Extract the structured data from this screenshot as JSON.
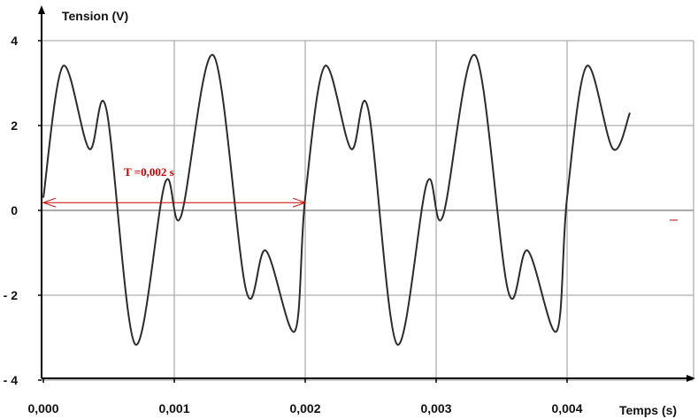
{
  "chart_data": {
    "type": "line",
    "ylabel": "Tension (V)",
    "xlabel": "Temps (s)",
    "xlim": [
      0,
      0.0045
    ],
    "ylim": [
      -4,
      4
    ],
    "x_ticks": [
      {
        "value": 0,
        "label": "0,000"
      },
      {
        "value": 0.001,
        "label": "0,001"
      },
      {
        "value": 0.002,
        "label": "0,002"
      },
      {
        "value": 0.003,
        "label": "0,003"
      },
      {
        "value": 0.004,
        "label": "0,004"
      }
    ],
    "y_ticks": [
      {
        "value": 4,
        "label": "4"
      },
      {
        "value": 2,
        "label": "2"
      },
      {
        "value": 0,
        "label": "0"
      },
      {
        "value": -2,
        "label": "- 2"
      },
      {
        "value": -4,
        "label": "- 4"
      }
    ],
    "grid": true,
    "series": [
      {
        "color": "#2b2b2b",
        "x": [
          0,
          0.00015,
          0.00035,
          0.00048,
          0.0007,
          0.00093,
          0.00105,
          0.0013,
          0.00155,
          0.0017,
          0.00192,
          0.002,
          0.00215,
          0.00235,
          0.00248,
          0.0027,
          0.00293,
          0.00305,
          0.0033,
          0.00355,
          0.0037,
          0.00392,
          0.004,
          0.00415,
          0.00435,
          0.00448
        ],
        "y": [
          0.3,
          3.4,
          1.45,
          2.4,
          -3.15,
          0.65,
          -0.15,
          3.65,
          -1.9,
          -0.95,
          -2.85,
          0.3,
          3.4,
          1.45,
          2.4,
          -3.15,
          0.65,
          -0.15,
          3.65,
          -1.9,
          -0.95,
          -2.85,
          0.3,
          3.4,
          1.45,
          2.3
        ]
      }
    ],
    "annotation": {
      "text": "T =0,002 s",
      "from_x": 0,
      "to_x": 0.002,
      "y": 0.35,
      "color": "#cc0000"
    }
  }
}
